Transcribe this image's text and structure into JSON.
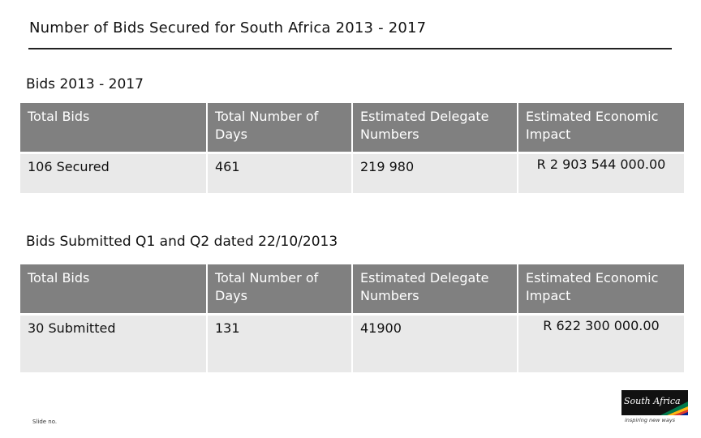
{
  "slide": {
    "title": "Number of Bids Secured for South Africa 2013 - 2017",
    "slide_no_label": "Slide no."
  },
  "section1": {
    "title": "Bids 2013 - 2017",
    "headers": [
      "Total Bids",
      "Total Number of Days",
      "Estimated Delegate Numbers",
      "Estimated Economic Impact"
    ],
    "row": [
      "106 Secured",
      "461",
      "219 980",
      "R 2 903 544 000.00"
    ]
  },
  "section2": {
    "title": "Bids Submitted Q1 and Q2 dated 22/10/2013",
    "headers": [
      "Total Bids",
      "Total Number of Days",
      "Estimated Delegate Numbers",
      "Estimated Economic Impact"
    ],
    "row": [
      "30 Submitted",
      "131",
      "41900",
      "R 622 300 000.00"
    ]
  },
  "logo": {
    "wordmark": "South Africa",
    "tagline": "inspiring new ways",
    "colors": {
      "box": "#111111",
      "green": "#007a4d",
      "yellow": "#ffb612",
      "red": "#de3831",
      "blue": "#002395"
    }
  }
}
